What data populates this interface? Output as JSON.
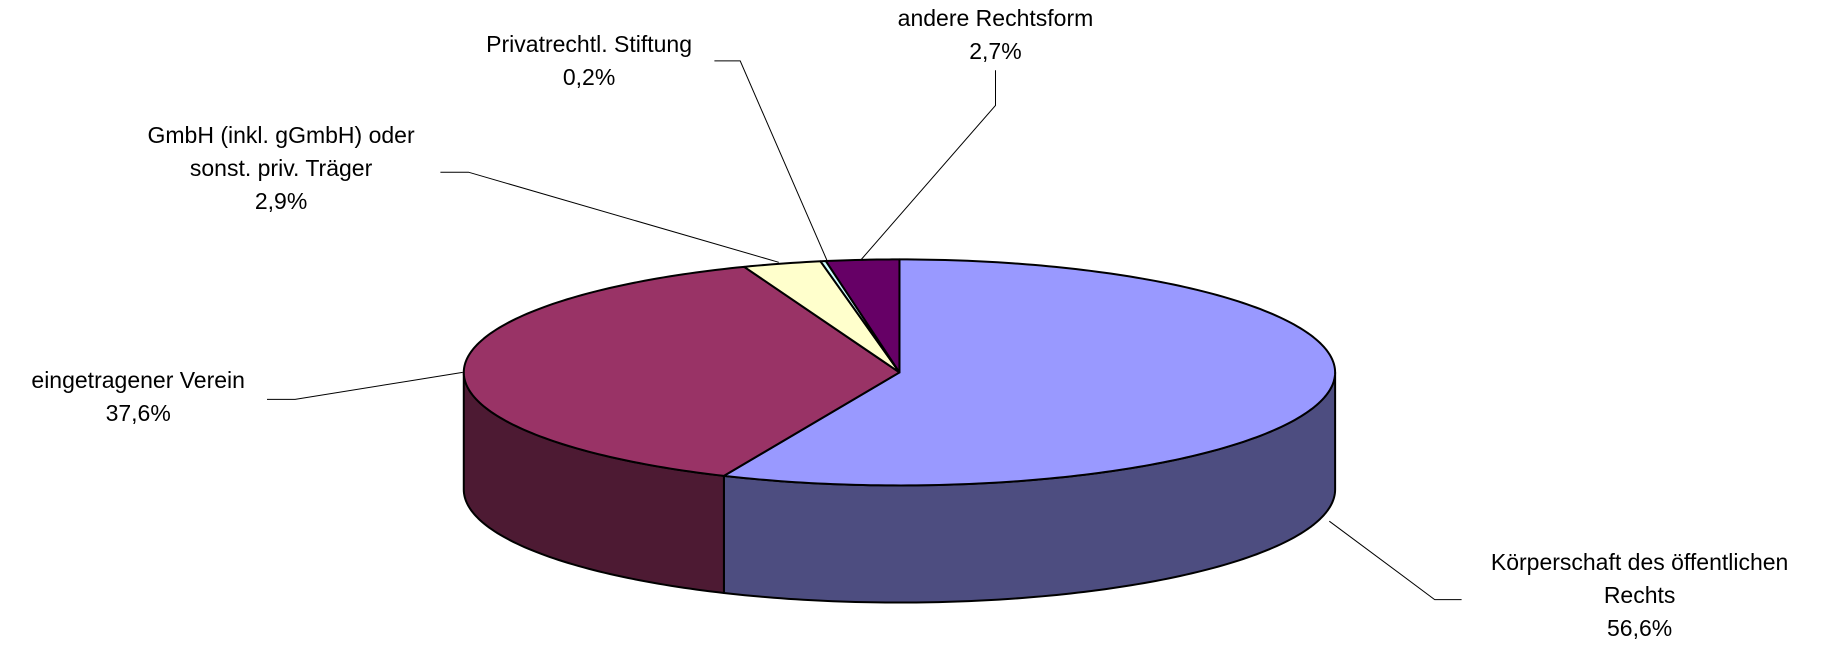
{
  "chart_data": {
    "type": "pie3d",
    "categories": [
      "Körperschaft des öffentlichen Rechts",
      "eingetragener Verein",
      "GmbH (inkl. gGmbH) oder sonst. priv. Träger",
      "Privatrechtl. Stiftung",
      "andere Rechtsform"
    ],
    "values": [
      56.6,
      37.6,
      2.9,
      0.2,
      2.7
    ],
    "value_labels": [
      "56,6%",
      "37,6%",
      "2,9%",
      "0,2%",
      "2,7%"
    ],
    "colors": [
      "#9999ff",
      "#993366",
      "#ffffcc",
      "#ccffff",
      "#660066"
    ]
  }
}
